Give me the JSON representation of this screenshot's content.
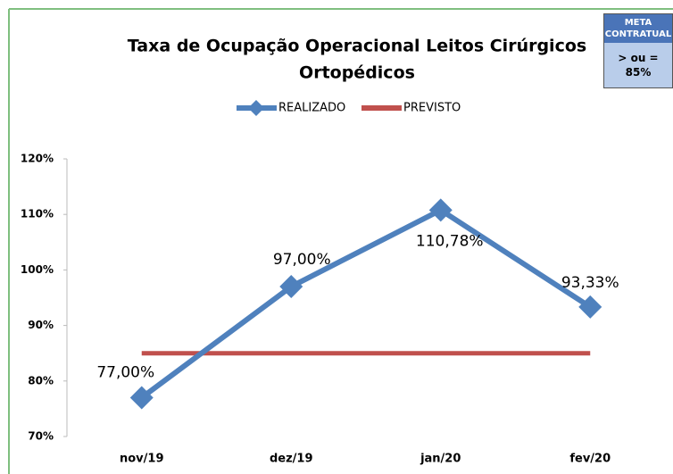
{
  "chart_data": {
    "type": "line",
    "title": [
      "Taxa de Ocupação Operacional Leitos Cirúrgicos",
      "Ortopédicos"
    ],
    "categories": [
      "nov/19",
      "dez/19",
      "jan/20",
      "fev/20"
    ],
    "series": [
      {
        "name": "REALIZADO",
        "color": "#4f81bd",
        "values": [
          77,
          97,
          110.78,
          93.33
        ],
        "value_labels": [
          "77,00%",
          "97,00%",
          "110,78%",
          "93,33%"
        ]
      },
      {
        "name": "PREVISTO",
        "color": "#c0504d",
        "values": [
          85,
          85,
          85,
          85
        ]
      }
    ],
    "ylim": [
      70,
      120
    ],
    "yticks": [
      {
        "value": 70,
        "label": "70%"
      },
      {
        "value": 80,
        "label": "80%"
      },
      {
        "value": 90,
        "label": "90%"
      },
      {
        "value": 100,
        "label": "100%"
      },
      {
        "value": 110,
        "label": "110%"
      },
      {
        "value": 120,
        "label": "120%"
      }
    ],
    "grid": false,
    "legend": "top",
    "annotation": {
      "header": "META CONTRATUAL",
      "text": "> ou = 85%"
    }
  }
}
